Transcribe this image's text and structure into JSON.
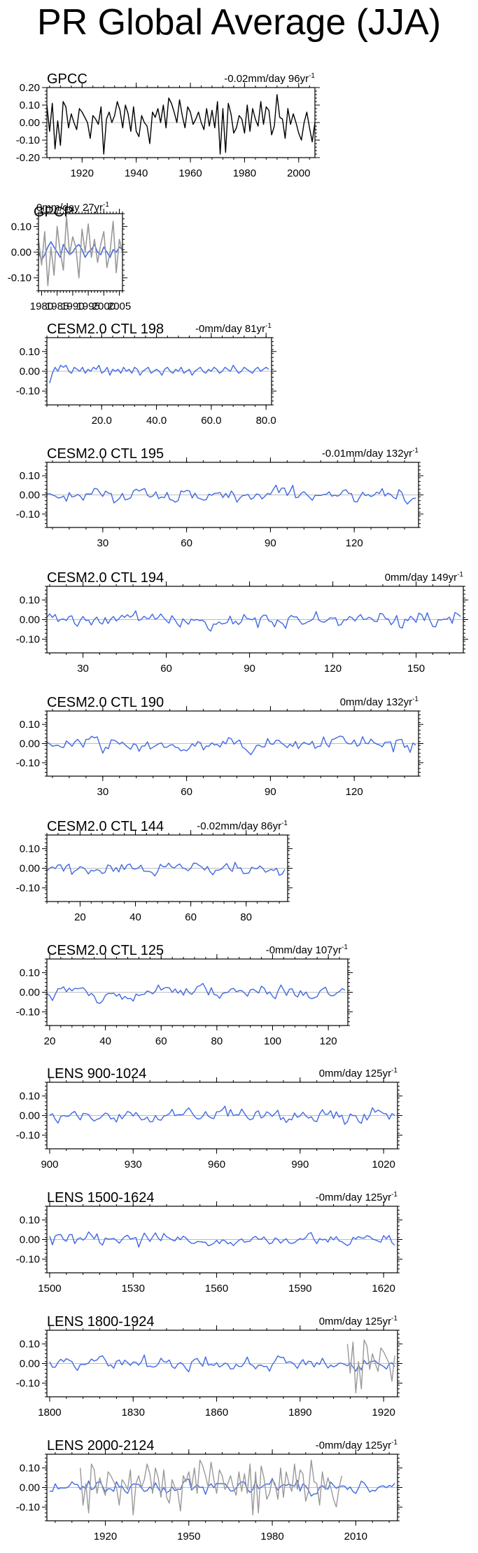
{
  "title": "PR Global Average (JJA)",
  "colors": {
    "obs": "#000000",
    "model": "#4169E1",
    "overlay": "#999999",
    "zero_line": "#bdbdbd"
  },
  "chart_data": [
    {
      "type": "line",
      "title": "GPCC",
      "trend": "-0.02mm/day 96yr",
      "sup": "-1",
      "x_start": 1907,
      "xlim": [
        1907,
        2006
      ],
      "ylim": [
        -0.2,
        0.2
      ],
      "yticks": [
        -0.2,
        -0.1,
        0.0,
        0.1,
        0.2
      ],
      "yticklabels": [
        "-0.20",
        "-0.10",
        "0.00",
        "0.10",
        "0.20"
      ],
      "xticks": [
        1920,
        1940,
        1960,
        1980,
        2000
      ],
      "xticklabels": [
        "1920",
        "1940",
        "1960",
        "1980",
        "2000"
      ],
      "series": [
        {
          "name": "GPCC",
          "color": "#000000",
          "x_start": 1907,
          "values": [
            0.1,
            -0.05,
            0.11,
            -0.15,
            0.01,
            -0.13,
            0.12,
            0.09,
            -0.03,
            0.05,
            0.0,
            -0.04,
            0.08,
            0.06,
            0.03,
            0.0,
            -0.09,
            0.04,
            0.02,
            -0.01,
            0.09,
            -0.18,
            0.02,
            0.06,
            0.0,
            0.04,
            0.12,
            0.07,
            -0.03,
            0.1,
            0.05,
            -0.05,
            0.09,
            -0.05,
            -0.08,
            0.04,
            0.0,
            -0.02,
            -0.12,
            0.06,
            0.03,
            0.08,
            0.0,
            0.1,
            -0.03,
            0.14,
            0.11,
            0.06,
            0.0,
            0.13,
            0.04,
            -0.03,
            0.09,
            0.06,
            -0.01,
            0.02,
            0.06,
            0.0,
            -0.04,
            0.08,
            -0.02,
            0.07,
            -0.03,
            0.12,
            -0.18,
            0.08,
            -0.17,
            0.11,
            0.05,
            -0.06,
            -0.03,
            0.04,
            0.02,
            -0.06,
            0.1,
            -0.05,
            0.08,
            0.02,
            -0.02,
            0.12,
            -0.01,
            0.09,
            0.07,
            -0.07,
            -0.02,
            0.16,
            0.03,
            0.02,
            -0.09,
            0.08,
            -0.01,
            0.05,
            0.0,
            -0.06,
            -0.1,
            0.0,
            0.06,
            -0.03,
            -0.11,
            0.0
          ]
        }
      ]
    },
    {
      "type": "line",
      "title": "GPCP",
      "trend": "0mm/day 27yr",
      "sup": "-1",
      "xlim": [
        1979,
        2006
      ],
      "ylim": [
        -0.15,
        0.15
      ],
      "yticks": [
        -0.1,
        0.0,
        0.1
      ],
      "yticklabels": [
        "-0.10",
        "0.00",
        "0.10"
      ],
      "xticks": [
        1980,
        1985,
        1990,
        1995,
        2000,
        2005
      ],
      "xticklabels": [
        "1980",
        "1985",
        "1990",
        "1995",
        "2000",
        "2005"
      ],
      "series": [
        {
          "name": "GPCP",
          "color": "#4169E1",
          "x_start": 1979,
          "values": [
            0.0,
            -0.03,
            -0.01,
            0.02,
            0.04,
            0.02,
            0.0,
            -0.02,
            0.03,
            0.01,
            -0.01,
            0.0,
            0.02,
            0.03,
            0.01,
            -0.02,
            0.0,
            0.01,
            0.03,
            0.0,
            -0.01,
            0.02,
            0.0,
            -0.02,
            0.01,
            0.0,
            0.02,
            0.01
          ]
        },
        {
          "name": "GPCC overlay",
          "color": "#999999",
          "x_start": 1979,
          "values": [
            0.05,
            -0.05,
            0.08,
            -0.13,
            0.02,
            -0.09,
            0.1,
            0.0,
            -0.07,
            0.14,
            -0.01,
            0.06,
            0.02,
            -0.1,
            0.09,
            0.0,
            0.11,
            -0.02,
            0.05,
            -0.04,
            0.03,
            0.08,
            -0.06,
            0.0,
            0.12,
            -0.08,
            0.05,
            0.0
          ]
        }
      ]
    },
    {
      "type": "line",
      "title": "CESM2.0 CTL 198",
      "trend": "-0mm/day 81yr",
      "sup": "-1",
      "xlim": [
        0,
        82
      ],
      "ylim": [
        -0.17,
        0.17
      ],
      "yticks": [
        -0.1,
        0.0,
        0.1
      ],
      "yticklabels": [
        "-0.10",
        "0.00",
        "0.10"
      ],
      "xticks": [
        20,
        40,
        60,
        80
      ],
      "xticklabels": [
        "20.0",
        "40.0",
        "60.0",
        "80.0"
      ],
      "series": [
        {
          "name": "CTL 198",
          "color": "#4169E1",
          "x_start": 1,
          "values": [
            -0.06,
            -0.01,
            0.02,
            0.0,
            0.03,
            0.02,
            0.03,
            0.0,
            -0.01,
            0.02,
            0.01,
            0.0,
            0.02,
            -0.01,
            0.01,
            0.0,
            0.02,
            0.01,
            0.03,
            -0.01,
            0.0,
            0.02,
            -0.02,
            0.01,
            0.0,
            0.01,
            -0.01,
            0.02,
            0.0,
            0.01,
            -0.01,
            0.02,
            0.01,
            -0.02,
            0.0,
            0.01,
            0.02,
            -0.01,
            0.0,
            0.01,
            0.0,
            -0.02,
            0.01,
            0.02,
            0.0,
            -0.01,
            0.01,
            0.0,
            0.02,
            -0.01,
            0.0,
            0.01,
            -0.02,
            0.0,
            0.01,
            0.02,
            0.0,
            -0.01,
            0.01,
            0.0,
            0.02,
            0.01,
            -0.01,
            0.0,
            0.02,
            0.01,
            0.0,
            0.03,
            0.01,
            -0.01,
            0.0,
            0.02,
            0.01,
            0.0,
            -0.01,
            0.01,
            0.02,
            0.0,
            0.01,
            0.02,
            0.01
          ]
        }
      ]
    },
    {
      "type": "line",
      "title": "CESM2.0 CTL 195",
      "trend": "-0.01mm/day 132yr",
      "sup": "-1",
      "xlim": [
        10,
        143
      ],
      "ylim": [
        -0.17,
        0.17
      ],
      "yticks": [
        -0.1,
        0.0,
        0.1
      ],
      "yticklabels": [
        "-0.10",
        "0.00",
        "0.10"
      ],
      "xticks": [
        30,
        60,
        90,
        120
      ],
      "xticklabels": [
        "30",
        "60",
        "90",
        "120"
      ],
      "series": [
        {
          "name": "CTL 195",
          "color": "#4169E1",
          "x_start": 10,
          "seed": 195,
          "n": 133,
          "amp": 0.022
        }
      ]
    },
    {
      "type": "line",
      "title": "CESM2.0 CTL 194",
      "trend": "0mm/day 149yr",
      "sup": "-1",
      "xlim": [
        17,
        167
      ],
      "ylim": [
        -0.17,
        0.17
      ],
      "yticks": [
        -0.1,
        0.0,
        0.1
      ],
      "yticklabels": [
        "-0.10",
        "0.00",
        "0.10"
      ],
      "xticks": [
        30,
        60,
        90,
        120,
        150
      ],
      "xticklabels": [
        "30",
        "60",
        "90",
        "120",
        "150"
      ],
      "series": [
        {
          "name": "CTL 194",
          "color": "#4169E1",
          "x_start": 17,
          "seed": 194,
          "n": 150,
          "amp": 0.022
        }
      ]
    },
    {
      "type": "line",
      "title": "CESM2.0 CTL 190",
      "trend": "0mm/day 132yr",
      "sup": "-1",
      "xlim": [
        10,
        143
      ],
      "ylim": [
        -0.17,
        0.17
      ],
      "yticks": [
        -0.1,
        0.0,
        0.1
      ],
      "yticklabels": [
        "-0.10",
        "0.00",
        "0.10"
      ],
      "xticks": [
        30,
        60,
        90,
        120
      ],
      "xticklabels": [
        "30",
        "60",
        "90",
        "120"
      ],
      "series": [
        {
          "name": "CTL 190",
          "color": "#4169E1",
          "x_start": 10,
          "seed": 190,
          "n": 133,
          "amp": 0.022
        }
      ]
    },
    {
      "type": "line",
      "title": "CESM2.0 CTL 144",
      "trend": "-0.02mm/day 86yr",
      "sup": "-1",
      "xlim": [
        8,
        95
      ],
      "ylim": [
        -0.17,
        0.17
      ],
      "yticks": [
        -0.1,
        0.0,
        0.1
      ],
      "yticklabels": [
        "-0.10",
        "0.00",
        "0.10"
      ],
      "xticks": [
        20,
        40,
        60,
        80
      ],
      "xticklabels": [
        "20",
        "40",
        "60",
        "80"
      ],
      "series": [
        {
          "name": "CTL 144",
          "color": "#4169E1",
          "x_start": 8,
          "seed": 144,
          "n": 87,
          "amp": 0.018
        }
      ]
    },
    {
      "type": "line",
      "title": "CESM2.0 CTL 125",
      "trend": "-0mm/day 107yr",
      "sup": "-1",
      "xlim": [
        19,
        127
      ],
      "ylim": [
        -0.17,
        0.17
      ],
      "yticks": [
        -0.1,
        0.0,
        0.1
      ],
      "yticklabels": [
        "-0.10",
        "0.00",
        "0.10"
      ],
      "xticks": [
        20,
        40,
        60,
        80,
        100,
        120
      ],
      "xticklabels": [
        "20",
        "40",
        "60",
        "80",
        "100",
        "120"
      ],
      "series": [
        {
          "name": "CTL 125",
          "color": "#4169E1",
          "x_start": 19,
          "seed": 125,
          "n": 108,
          "amp": 0.022
        }
      ]
    },
    {
      "type": "line",
      "title": "LENS 900-1024",
      "trend": "0mm/day 125yr",
      "sup": "-1",
      "xlim": [
        899,
        1025
      ],
      "ylim": [
        -0.17,
        0.17
      ],
      "yticks": [
        -0.1,
        0.0,
        0.1
      ],
      "yticklabels": [
        "-0.10",
        "0.00",
        "0.10"
      ],
      "xticks": [
        900,
        930,
        960,
        990,
        1020
      ],
      "xticklabels": [
        "900",
        "930",
        "960",
        "990",
        "1020"
      ],
      "series": [
        {
          "name": "LENS 900-1024",
          "color": "#4169E1",
          "x_start": 900,
          "seed": 900,
          "n": 125,
          "amp": 0.02
        }
      ]
    },
    {
      "type": "line",
      "title": "LENS 1500-1624",
      "trend": "-0mm/day 125yr",
      "sup": "-1",
      "xlim": [
        1499,
        1625
      ],
      "ylim": [
        -0.17,
        0.17
      ],
      "yticks": [
        -0.1,
        0.0,
        0.1
      ],
      "yticklabels": [
        "-0.10",
        "0.00",
        "0.10"
      ],
      "xticks": [
        1500,
        1530,
        1560,
        1590,
        1620
      ],
      "xticklabels": [
        "1500",
        "1530",
        "1560",
        "1590",
        "1620"
      ],
      "series": [
        {
          "name": "LENS 1500-1624",
          "color": "#4169E1",
          "x_start": 1500,
          "seed": 1500,
          "n": 125,
          "amp": 0.02
        }
      ]
    },
    {
      "type": "line",
      "title": "LENS 1800-1924",
      "trend": "0mm/day 125yr",
      "sup": "-1",
      "xlim": [
        1799,
        1925
      ],
      "ylim": [
        -0.17,
        0.17
      ],
      "yticks": [
        -0.1,
        0.0,
        0.1
      ],
      "yticklabels": [
        "-0.10",
        "0.00",
        "0.10"
      ],
      "xticks": [
        1800,
        1830,
        1860,
        1890,
        1920
      ],
      "xticklabels": [
        "1800",
        "1830",
        "1860",
        "1890",
        "1920"
      ],
      "series": [
        {
          "name": "LENS 1800-1924",
          "color": "#4169E1",
          "x_start": 1800,
          "seed": 1800,
          "n": 125,
          "amp": 0.02
        },
        {
          "name": "GPCC overlay",
          "color": "#999999",
          "x_start": 1907,
          "values": [
            0.1,
            -0.05,
            0.11,
            -0.15,
            0.01,
            -0.13,
            0.12,
            0.09,
            -0.03,
            0.05,
            0.0,
            -0.04,
            0.08,
            0.06,
            0.03,
            0.0,
            -0.09,
            0.04
          ]
        }
      ]
    },
    {
      "type": "line",
      "title": "LENS 2000-2124",
      "trend": "-0mm/day 125yr",
      "sup": "-1",
      "xlim": [
        1899,
        2025
      ],
      "ylim": [
        -0.17,
        0.17
      ],
      "yticks": [
        -0.1,
        0.0,
        0.1
      ],
      "yticklabels": [
        "-0.10",
        "0.00",
        "0.10"
      ],
      "xticks": [
        1920,
        1950,
        1980,
        2010
      ],
      "xticklabels": [
        "1920",
        "1950",
        "1980",
        "2010"
      ],
      "series": [
        {
          "name": "LENS 2000-2124",
          "color": "#4169E1",
          "x_start": 1900,
          "seed": 2000,
          "n": 125,
          "amp": 0.02
        },
        {
          "name": "GPCC overlay",
          "color": "#999999",
          "x_start": 1911,
          "values": [
            0.1,
            -0.09,
            0.02,
            -0.13,
            0.12,
            0.09,
            -0.03,
            0.05,
            0.0,
            -0.04,
            0.08,
            0.06,
            0.03,
            0.0,
            -0.09,
            0.04,
            0.02,
            -0.01,
            0.09,
            -0.14,
            0.02,
            0.06,
            0.0,
            0.04,
            0.12,
            0.07,
            -0.03,
            0.1,
            0.05,
            -0.05,
            0.09,
            -0.05,
            -0.08,
            0.04,
            0.0,
            -0.02,
            -0.12,
            0.06,
            0.03,
            0.08,
            0.0,
            0.1,
            -0.03,
            0.14,
            0.11,
            0.06,
            0.0,
            0.13,
            0.04,
            -0.03,
            0.09,
            0.06,
            -0.01,
            0.02,
            0.06,
            0.0,
            -0.04,
            0.08,
            -0.02,
            0.07,
            -0.03,
            0.12,
            -0.14,
            0.08,
            -0.13,
            0.11,
            0.05,
            -0.06,
            -0.03,
            0.04,
            0.02,
            -0.06,
            0.1,
            -0.05,
            0.08,
            0.02,
            -0.02,
            0.12,
            -0.01,
            0.09,
            0.07,
            -0.07,
            -0.02,
            0.14,
            0.03,
            0.02,
            -0.09,
            0.08,
            -0.01,
            0.05,
            0.0,
            -0.06,
            -0.1,
            0.0,
            0.06
          ]
        }
      ]
    }
  ]
}
